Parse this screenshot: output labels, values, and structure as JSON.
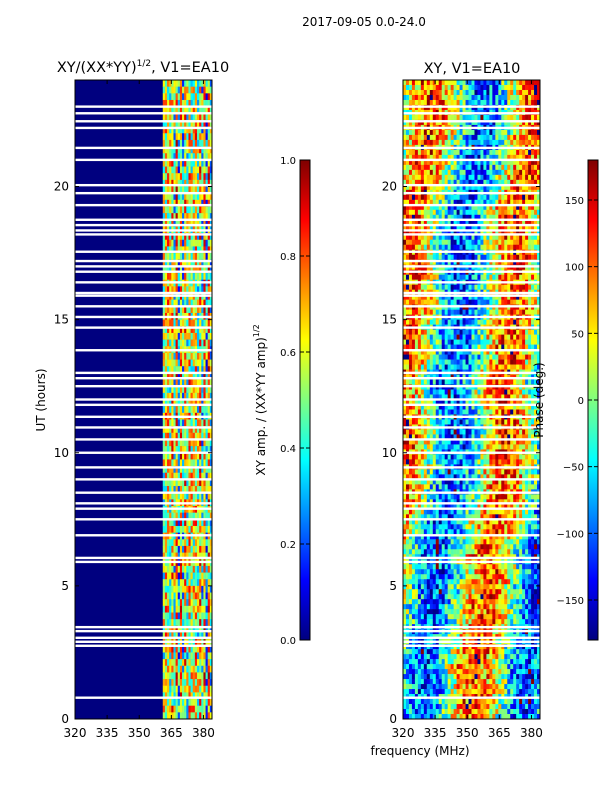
{
  "figure_title": "2017-09-05 0.0-24.0",
  "colors": {
    "panel_bg": "#00007f",
    "colormap": [
      "#00007f",
      "#0000ff",
      "#0080ff",
      "#00ffff",
      "#80ff80",
      "#ffff00",
      "#ff8000",
      "#ff0000",
      "#7f0000"
    ]
  },
  "chart_data": [
    {
      "type": "heatmap",
      "title": "XY/(XX*YY)",
      "title_sup": "1/2",
      "title_suffix": ", V1=EA10",
      "xlabel": "",
      "ylabel": "UT (hours)",
      "xlim": [
        320,
        384
      ],
      "ylim": [
        0,
        24
      ],
      "xticks": [
        320,
        335,
        350,
        365,
        380
      ],
      "yticks": [
        0,
        5,
        10,
        15,
        20
      ],
      "colorbar": {
        "label": "XY amp. / (XX*YY amp)",
        "label_sup": "1/2",
        "range": [
          0.0,
          1.0
        ],
        "ticks": [
          "0.0",
          "0.2",
          "0.4",
          "0.6",
          "0.8",
          "1.0"
        ],
        "tick_values": [
          0.0,
          0.2,
          0.4,
          0.6,
          0.8,
          1.0
        ]
      },
      "bright_band_mhz": [
        361,
        384
      ],
      "flagged_hours": [
        0.8,
        2.75,
        2.9,
        3.05,
        3.3,
        3.45,
        5.9,
        6.05,
        6.9,
        7.5,
        7.9,
        8.1,
        8.5,
        9.0,
        9.45,
        10.0,
        10.5,
        10.95,
        11.35,
        11.8,
        12.0,
        12.5,
        12.8,
        13.0,
        13.85,
        14.7,
        15.1,
        15.5,
        15.9,
        16.0,
        16.4,
        16.8,
        17.0,
        17.2,
        17.55,
        18.2,
        18.35,
        18.55,
        18.75,
        19.3,
        19.75,
        20.05,
        21.0,
        21.45,
        22.2,
        22.45,
        22.75,
        23.0
      ]
    },
    {
      "type": "heatmap",
      "title": "XY, V1=EA10",
      "xlabel": "frequency (MHz)",
      "ylabel": "",
      "xlim": [
        320,
        384
      ],
      "ylim": [
        0,
        24
      ],
      "xticks": [
        320,
        335,
        350,
        365,
        380
      ],
      "yticks": [
        0,
        5,
        10,
        15,
        20
      ],
      "colorbar": {
        "label": "Phase (deg.)",
        "range": [
          -180,
          180
        ],
        "ticks": [
          "−150",
          "−100",
          "−50",
          "0",
          "50",
          "100",
          "150"
        ],
        "tick_values": [
          -150,
          -100,
          -50,
          0,
          50,
          100,
          150
        ]
      },
      "flagged_hours": [
        0.8,
        2.75,
        2.9,
        3.05,
        3.3,
        3.45,
        5.9,
        6.05,
        6.9,
        7.5,
        7.9,
        8.1,
        8.5,
        9.0,
        9.45,
        10.0,
        10.5,
        10.95,
        11.35,
        11.8,
        12.0,
        12.5,
        12.8,
        13.0,
        13.85,
        14.7,
        15.1,
        15.5,
        15.9,
        16.0,
        16.4,
        16.8,
        17.0,
        17.2,
        17.55,
        18.2,
        18.35,
        18.55,
        18.75,
        19.3,
        19.75,
        20.05,
        21.0,
        21.45,
        22.2,
        22.45,
        22.75,
        23.0
      ]
    }
  ]
}
